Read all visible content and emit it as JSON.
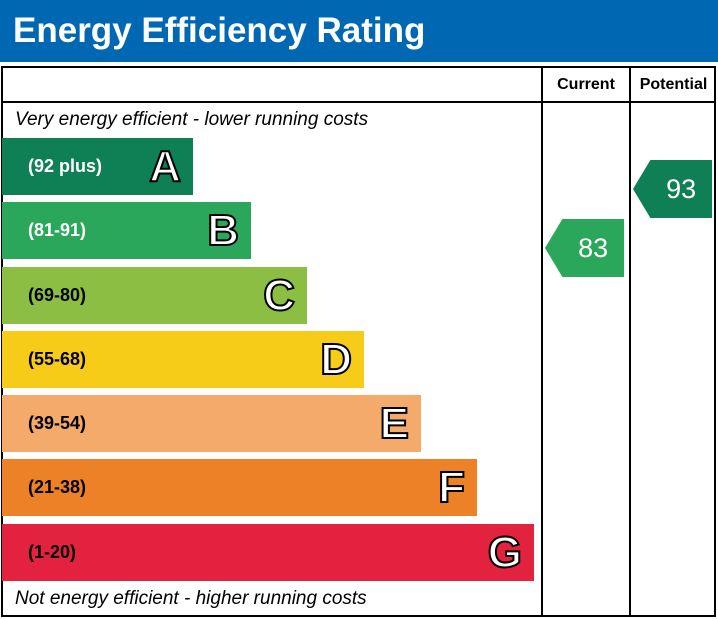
{
  "title": "Energy Efficiency Rating",
  "columns": {
    "current": "Current",
    "potential": "Potential"
  },
  "top_note": "Very energy efficient - lower running costs",
  "bottom_note": "Not energy efficient - higher running costs",
  "colors": {
    "header": "#0068b3",
    "A": "#0f7f56",
    "B": "#2aa75b",
    "C": "#8dbe44",
    "D": "#f6cc18",
    "E": "#f3aa6b",
    "F": "#ec8127",
    "G": "#e2223e"
  },
  "chart_data": {
    "type": "bar",
    "title": "Energy Efficiency Rating",
    "categories": [
      "A",
      "B",
      "C",
      "D",
      "E",
      "F",
      "G"
    ],
    "ranges": [
      "(92 plus)",
      "(81-91)",
      "(69-80)",
      "(55-68)",
      "(39-54)",
      "(21-38)",
      "(1-20)"
    ],
    "current": {
      "value": "83",
      "band": "B"
    },
    "potential": {
      "value": "93",
      "band": "A"
    }
  }
}
